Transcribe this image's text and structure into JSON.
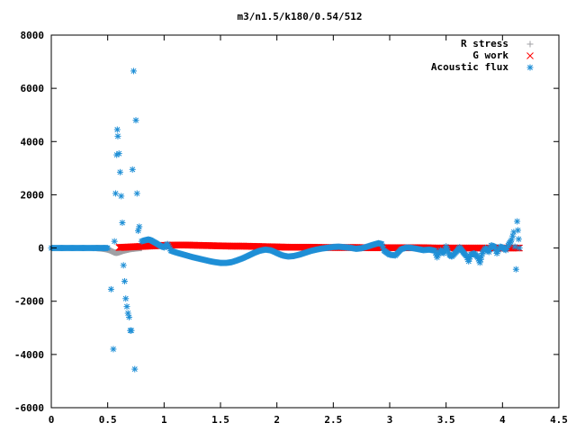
{
  "chart_data": {
    "type": "scatter",
    "title": "m3/n1.5/k180/0.54/512",
    "xlabel": "",
    "ylabel": "",
    "xlim": [
      0,
      4.5
    ],
    "ylim": [
      -6000,
      8000
    ],
    "x_ticks": [
      0,
      0.5,
      1,
      1.5,
      2,
      2.5,
      3,
      3.5,
      4,
      4.5
    ],
    "x_tick_labels": [
      "0",
      "0.5",
      "1",
      "1.5",
      "2",
      "2.5",
      "3",
      "3.5",
      "4",
      "4.5"
    ],
    "y_ticks": [
      -6000,
      -4000,
      -2000,
      0,
      2000,
      4000,
      6000,
      8000
    ],
    "y_tick_labels": [
      "-6000",
      "-4000",
      "-2000",
      "0",
      "2000",
      "4000",
      "6000",
      "8000"
    ],
    "grid": false,
    "legend_position": "top-right",
    "series": [
      {
        "name": "R stress",
        "marker": "plus",
        "color": "#a0a0a4",
        "x": [
          0.4,
          0.45,
          0.48,
          0.5,
          0.52,
          0.54,
          0.56,
          0.58,
          0.6,
          0.62,
          0.64,
          0.66,
          0.68,
          0.7,
          0.72,
          0.74,
          0.76,
          0.78,
          0.8
        ],
        "y": [
          0,
          -20,
          -40,
          -60,
          -90,
          -130,
          -170,
          -180,
          -160,
          -130,
          -100,
          -80,
          -60,
          -40,
          -30,
          -20,
          -10,
          0,
          0
        ]
      },
      {
        "name": "G work",
        "marker": "cross",
        "color": "#ff0000",
        "x": [
          0.6,
          0.7,
          0.8,
          0.9,
          1.0,
          1.1,
          1.2,
          1.3,
          1.4,
          1.5,
          1.6,
          1.7,
          1.8,
          1.9,
          2.0,
          2.1,
          2.2,
          2.3,
          2.4,
          2.5,
          2.6,
          2.7,
          2.8,
          2.9,
          3.0,
          3.1,
          3.2,
          3.3,
          3.4,
          3.5,
          3.6,
          3.7,
          3.8,
          3.9,
          4.0,
          4.1,
          4.15
        ],
        "y": [
          20,
          40,
          60,
          80,
          100,
          110,
          110,
          100,
          90,
          80,
          70,
          70,
          60,
          50,
          40,
          30,
          30,
          30,
          20,
          20,
          20,
          20,
          10,
          10,
          10,
          10,
          10,
          10,
          0,
          0,
          0,
          0,
          0,
          0,
          0,
          0,
          0
        ]
      },
      {
        "name": "Acoustic flux",
        "marker": "star",
        "color": "#1f8fd6",
        "x": [
          0.0,
          0.05,
          0.1,
          0.15,
          0.2,
          0.25,
          0.3,
          0.35,
          0.4,
          0.45,
          0.5,
          0.53,
          0.55,
          0.56,
          0.57,
          0.58,
          0.585,
          0.59,
          0.6,
          0.61,
          0.62,
          0.63,
          0.64,
          0.65,
          0.66,
          0.67,
          0.68,
          0.69,
          0.7,
          0.71,
          0.72,
          0.73,
          0.74,
          0.75,
          0.76,
          0.77,
          0.78,
          0.8,
          0.82,
          0.84,
          0.86,
          0.88,
          0.9,
          0.93,
          0.96,
          1.0,
          1.03,
          1.06,
          1.1,
          1.15,
          1.2,
          1.25,
          1.3,
          1.35,
          1.4,
          1.45,
          1.5,
          1.55,
          1.6,
          1.65,
          1.7,
          1.75,
          1.8,
          1.85,
          1.9,
          1.95,
          2.0,
          2.05,
          2.1,
          2.15,
          2.2,
          2.25,
          2.3,
          2.35,
          2.4,
          2.45,
          2.5,
          2.55,
          2.6,
          2.65,
          2.7,
          2.75,
          2.8,
          2.85,
          2.9,
          2.93,
          2.95,
          3.0,
          3.05,
          3.1,
          3.15,
          3.2,
          3.25,
          3.3,
          3.35,
          3.4,
          3.42,
          3.45,
          3.48,
          3.5,
          3.53,
          3.55,
          3.6,
          3.62,
          3.65,
          3.68,
          3.7,
          3.72,
          3.75,
          3.78,
          3.8,
          3.82,
          3.85,
          3.88,
          3.9,
          3.93,
          3.95,
          3.98,
          4.0,
          4.03,
          4.05,
          4.08,
          4.1,
          4.11,
          4.12,
          4.13,
          4.15
        ],
        "y": [
          0,
          0,
          0,
          0,
          0,
          0,
          0,
          0,
          0,
          0,
          0,
          -1550,
          -3800,
          250,
          2050,
          3500,
          4450,
          4200,
          3550,
          2850,
          1950,
          950,
          -650,
          -1250,
          -1900,
          -2200,
          -2450,
          -2600,
          -3100,
          -3100,
          2950,
          6650,
          -4550,
          4800,
          2050,
          650,
          800,
          250,
          280,
          300,
          320,
          300,
          250,
          180,
          100,
          20,
          150,
          -100,
          -160,
          -220,
          -280,
          -340,
          -390,
          -440,
          -490,
          -530,
          -560,
          -560,
          -530,
          -460,
          -380,
          -280,
          -180,
          -100,
          -60,
          -90,
          -190,
          -280,
          -320,
          -300,
          -250,
          -180,
          -110,
          -60,
          -20,
          10,
          40,
          50,
          30,
          10,
          -30,
          -10,
          50,
          120,
          180,
          150,
          -100,
          -250,
          -280,
          -50,
          20,
          0,
          -40,
          -80,
          -60,
          -100,
          -350,
          -80,
          -200,
          60,
          -250,
          -320,
          -100,
          30,
          -150,
          -300,
          -500,
          -250,
          -200,
          -350,
          -550,
          -200,
          0,
          -150,
          100,
          50,
          -200,
          50,
          20,
          -80,
          100,
          300,
          600,
          50,
          -800,
          1000,
          0
        ]
      }
    ]
  }
}
